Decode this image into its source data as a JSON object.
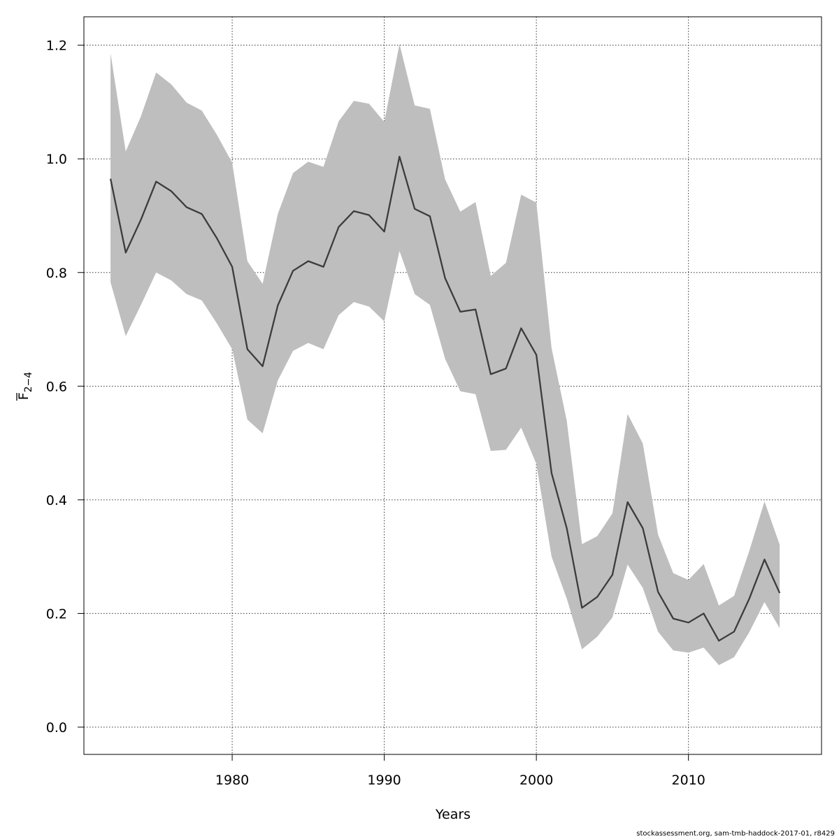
{
  "chart_data": {
    "type": "line",
    "title": "",
    "xlabel": "Years",
    "ylabel_main": "F",
    "ylabel_sub": "2−4",
    "xlim": [
      1970.25,
      2018.75
    ],
    "ylim": [
      -0.048,
      1.25
    ],
    "xticks": [
      1980,
      1990,
      2000,
      2010
    ],
    "yticks": [
      0.0,
      0.2,
      0.4,
      0.6,
      0.8,
      1.0,
      1.2
    ],
    "ytick_labels": [
      "0.0",
      "0.2",
      "0.4",
      "0.6",
      "0.8",
      "1.0",
      "1.2"
    ],
    "grid": true,
    "colors": {
      "band": "#bebebe",
      "line": "#3c3c3c"
    },
    "series": [
      {
        "name": "Fbar 2-4",
        "x": [
          1972,
          1973,
          1974,
          1975,
          1976,
          1977,
          1978,
          1979,
          1980,
          1981,
          1982,
          1983,
          1984,
          1985,
          1986,
          1987,
          1988,
          1989,
          1990,
          1991,
          1992,
          1993,
          1994,
          1995,
          1996,
          1997,
          1998,
          1999,
          2000,
          2001,
          2002,
          2003,
          2004,
          2005,
          2006,
          2007,
          2008,
          2009,
          2010,
          2011,
          2012,
          2013,
          2014,
          2015,
          2016
        ],
        "values": [
          0.965,
          0.835,
          0.893,
          0.96,
          0.943,
          0.915,
          0.903,
          0.86,
          0.81,
          0.665,
          0.635,
          0.742,
          0.803,
          0.82,
          0.81,
          0.88,
          0.908,
          0.901,
          0.872,
          1.004,
          0.912,
          0.899,
          0.79,
          0.731,
          0.735,
          0.621,
          0.631,
          0.702,
          0.655,
          0.447,
          0.35,
          0.21,
          0.229,
          0.268,
          0.396,
          0.35,
          0.238,
          0.191,
          0.184,
          0.2,
          0.152,
          0.168,
          0.226,
          0.295,
          0.236
        ],
        "lower": [
          0.783,
          0.688,
          0.743,
          0.8,
          0.786,
          0.762,
          0.751,
          0.71,
          0.665,
          0.541,
          0.517,
          0.61,
          0.662,
          0.676,
          0.665,
          0.725,
          0.748,
          0.74,
          0.714,
          0.838,
          0.762,
          0.743,
          0.648,
          0.591,
          0.586,
          0.486,
          0.488,
          0.527,
          0.463,
          0.3,
          0.226,
          0.137,
          0.159,
          0.193,
          0.286,
          0.245,
          0.168,
          0.135,
          0.131,
          0.14,
          0.109,
          0.123,
          0.167,
          0.22,
          0.174
        ],
        "upper": [
          1.186,
          1.013,
          1.075,
          1.152,
          1.131,
          1.099,
          1.085,
          1.042,
          0.993,
          0.82,
          0.78,
          0.903,
          0.975,
          0.995,
          0.986,
          1.066,
          1.102,
          1.097,
          1.065,
          1.202,
          1.094,
          1.088,
          0.964,
          0.907,
          0.924,
          0.794,
          0.817,
          0.937,
          0.923,
          0.667,
          0.539,
          0.322,
          0.336,
          0.376,
          0.551,
          0.499,
          0.339,
          0.271,
          0.259,
          0.287,
          0.214,
          0.231,
          0.31,
          0.397,
          0.321
        ]
      }
    ]
  },
  "footer_text": "stockassessment.org, sam-tmb-haddock-2017-01, r8429"
}
